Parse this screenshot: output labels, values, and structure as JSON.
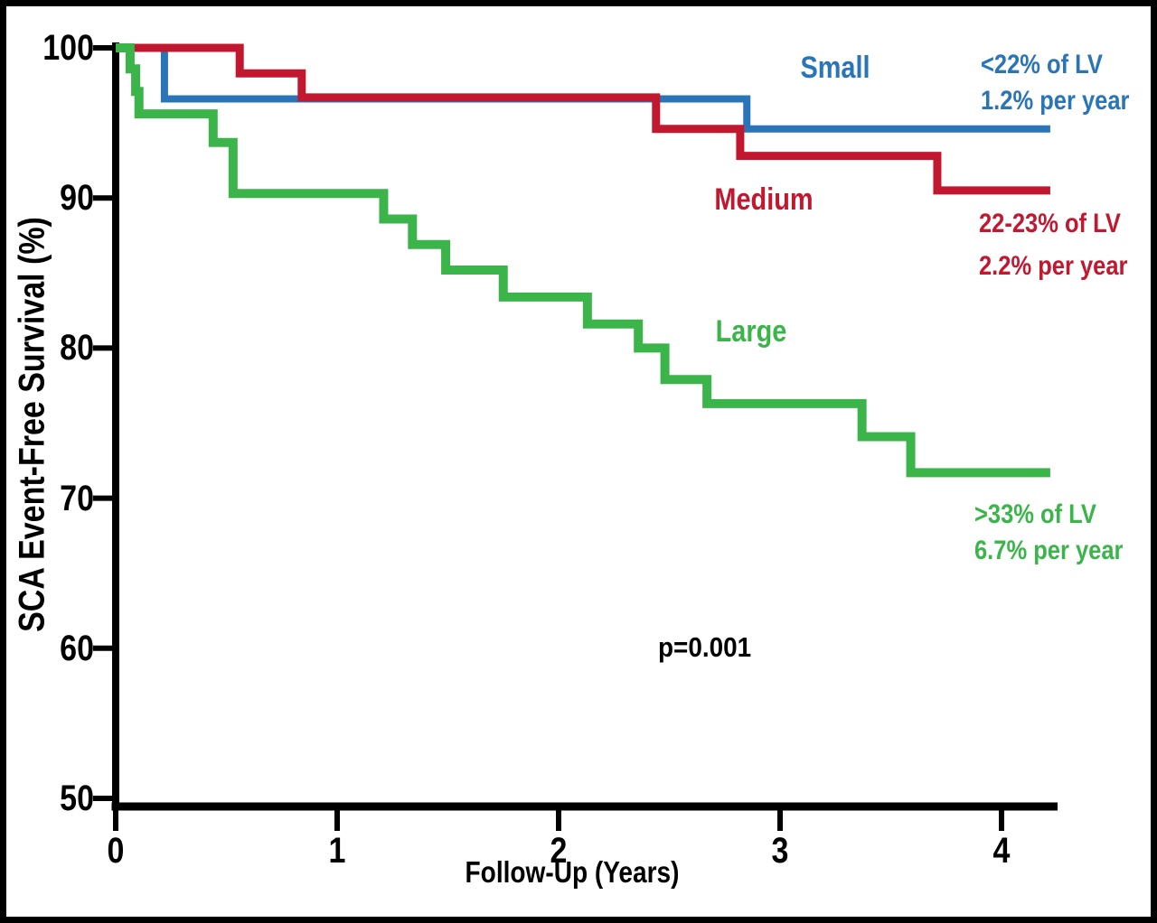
{
  "chart_data": {
    "type": "line",
    "subtype": "kaplan-meier-step-survival",
    "title": "",
    "xlabel": "Follow-Up (Years)",
    "ylabel": "SCA Event-Free Survival (%)",
    "xlim": [
      0,
      4.25
    ],
    "ylim": [
      50,
      100
    ],
    "x_ticks": [
      "0",
      "1",
      "2",
      "3",
      "4"
    ],
    "y_ticks": [
      "100",
      "90",
      "80",
      "70",
      "60",
      "50"
    ],
    "grid": false,
    "legend_position": "inline-annotations",
    "p_value": "p=0.001",
    "axis_color": "#000000",
    "series": [
      {
        "name": "Small",
        "label": "Small",
        "color": "#2a74b8",
        "note": [
          "<22% of LV",
          "1.2% per year"
        ],
        "stroke_width": 8,
        "steps": [
          [
            0,
            100
          ],
          [
            0.22,
            100
          ],
          [
            0.22,
            96.6
          ],
          [
            2.85,
            96.6
          ],
          [
            2.85,
            94.6
          ],
          [
            4.22,
            94.6
          ]
        ]
      },
      {
        "name": "Medium",
        "label": "Medium",
        "color": "#c2182f",
        "note": [
          "22-23% of LV",
          "2.2% per year"
        ],
        "stroke_width": 9,
        "steps": [
          [
            0,
            100
          ],
          [
            0.56,
            100
          ],
          [
            0.56,
            98.3
          ],
          [
            0.84,
            98.3
          ],
          [
            0.84,
            96.7
          ],
          [
            2.44,
            96.7
          ],
          [
            2.44,
            94.6
          ],
          [
            2.82,
            94.6
          ],
          [
            2.82,
            92.8
          ],
          [
            3.71,
            92.8
          ],
          [
            3.71,
            90.5
          ],
          [
            4.22,
            90.5
          ]
        ]
      },
      {
        "name": "Large",
        "label": "Large",
        "color": "#3bb54a",
        "note": [
          ">33% of LV",
          "6.7% per year"
        ],
        "stroke_width": 10,
        "steps": [
          [
            0,
            100
          ],
          [
            0.065,
            100
          ],
          [
            0.065,
            98.6
          ],
          [
            0.09,
            98.6
          ],
          [
            0.09,
            97.1
          ],
          [
            0.105,
            97.1
          ],
          [
            0.105,
            95.6
          ],
          [
            0.44,
            95.6
          ],
          [
            0.44,
            93.7
          ],
          [
            0.53,
            93.7
          ],
          [
            0.53,
            90.3
          ],
          [
            1.21,
            90.3
          ],
          [
            1.21,
            88.6
          ],
          [
            1.34,
            88.6
          ],
          [
            1.34,
            86.9
          ],
          [
            1.49,
            86.9
          ],
          [
            1.49,
            85.2
          ],
          [
            1.75,
            85.2
          ],
          [
            1.75,
            83.4
          ],
          [
            2.13,
            83.4
          ],
          [
            2.13,
            81.6
          ],
          [
            2.36,
            81.6
          ],
          [
            2.36,
            80.0
          ],
          [
            2.48,
            80.0
          ],
          [
            2.48,
            77.9
          ],
          [
            2.67,
            77.9
          ],
          [
            2.67,
            76.3
          ],
          [
            3.37,
            76.3
          ],
          [
            3.37,
            74.1
          ],
          [
            3.59,
            74.1
          ],
          [
            3.59,
            71.7
          ],
          [
            4.22,
            71.7
          ]
        ]
      }
    ]
  }
}
